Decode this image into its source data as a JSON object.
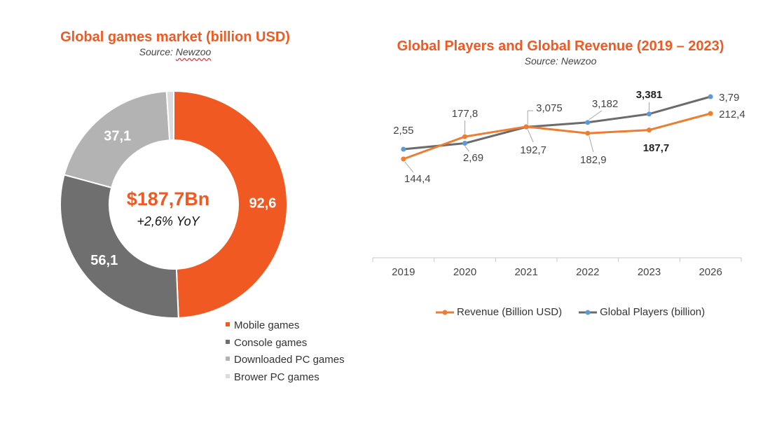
{
  "donut": {
    "title": "Global games market (billion USD)",
    "source_label": "Source: ",
    "source_name": "Newzoo",
    "center_value": "$187,7Bn",
    "center_sub": "+2,6% YoY"
  },
  "line_chart": {
    "title": "Global Players and Global Revenue (2019 – 2023)",
    "source": "Source: Newzoo"
  },
  "colors": {
    "orange": "#f05a22",
    "dark_gray": "#6f6f6f",
    "light_gray": "#b3b3b3",
    "lightest_gray": "#dcdcdc",
    "players_line": "#6b6b6b",
    "players_marker": "#5b9bd5",
    "revenue_line": "#ed7d31"
  },
  "chart_data": [
    {
      "type": "pie",
      "title": "Global games market (billion USD)",
      "total_label": "$187,7Bn",
      "yoy_label": "+2,6% YoY",
      "slices": [
        {
          "name": "Mobile games",
          "value": 92.6,
          "label": "92,6"
        },
        {
          "name": "Console games",
          "value": 56.1,
          "label": "56,1"
        },
        {
          "name": "Downloaded PC games",
          "value": 37.1,
          "label": "37,1"
        },
        {
          "name": "Brower PC games",
          "value": 1.9,
          "label": ""
        }
      ]
    },
    {
      "type": "line",
      "title": "Global Players and Global Revenue (2019 – 2023)",
      "categories": [
        "2019",
        "2020",
        "2021",
        "2022",
        "2023",
        "2026"
      ],
      "series": [
        {
          "name": "Revenue (Billion USD)",
          "values": [
            144.4,
            177.8,
            192.7,
            182.9,
            187.7,
            212.4
          ],
          "labels": [
            "144,4",
            "177,8",
            "192,7",
            "182,9",
            "187,7",
            "212,4"
          ]
        },
        {
          "name": "Global Players (billion)",
          "values": [
            2.55,
            2.69,
            3.075,
            3.182,
            3.381,
            3.79
          ],
          "labels": [
            "2,55",
            "2,69",
            "3,075",
            "3,182",
            "3,381",
            "3,79"
          ]
        }
      ]
    }
  ]
}
